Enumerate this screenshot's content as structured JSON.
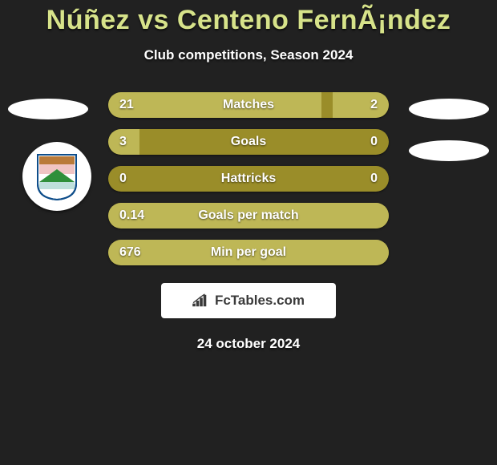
{
  "title": "Núñez vs Centeno FernÃ¡ndez",
  "subtitle": "Club competitions, Season 2024",
  "date": "24 october 2024",
  "brand": "FcTables.com",
  "colors": {
    "background": "#212121",
    "title": "#d7e38a",
    "bar_base": "#9a8d29",
    "bar_fill": "#beb756",
    "text": "#ffffff",
    "brand_box_bg": "#ffffff",
    "brand_text": "#3a3a3a"
  },
  "rows": [
    {
      "label": "Matches",
      "left": "21",
      "right": "2",
      "left_pct": 76,
      "right_pct": 20
    },
    {
      "label": "Goals",
      "left": "3",
      "right": "0",
      "left_pct": 11,
      "right_pct": 0
    },
    {
      "label": "Hattricks",
      "left": "0",
      "right": "0",
      "left_pct": 0,
      "right_pct": 0
    },
    {
      "label": "Goals per match",
      "left": "0.14",
      "right": "",
      "left_pct": 100,
      "right_pct": 0
    },
    {
      "label": "Min per goal",
      "left": "676",
      "right": "",
      "left_pct": 100,
      "right_pct": 0
    }
  ],
  "badge": {
    "roof": "#b97a39",
    "sky": "#f0c4c4",
    "hill": "#2f8f3a",
    "water": "#bfe0dc",
    "shield_border": "#0e4d8a"
  }
}
